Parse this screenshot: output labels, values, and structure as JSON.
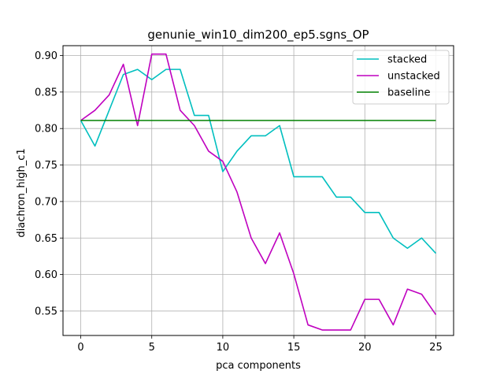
{
  "chart_data": {
    "type": "line",
    "title": "genunie_win10_dim200_ep5.sgns_OP",
    "xlabel": "pca components",
    "ylabel": "diachron_high_c1",
    "xlim": [
      -1.25,
      26.25
    ],
    "ylim": [
      0.5165,
      0.9135
    ],
    "xticks": [
      0,
      5,
      10,
      15,
      20,
      25
    ],
    "xtick_labels": [
      "0",
      "5",
      "10",
      "15",
      "20",
      "25"
    ],
    "yticks": [
      0.55,
      0.6,
      0.65,
      0.7,
      0.75,
      0.8,
      0.85,
      0.9
    ],
    "ytick_labels": [
      "0.55",
      "0.60",
      "0.65",
      "0.70",
      "0.75",
      "0.80",
      "0.85",
      "0.90"
    ],
    "grid": true,
    "legend_position": "top-right",
    "x": [
      0,
      1,
      2,
      3,
      4,
      5,
      6,
      7,
      8,
      9,
      10,
      11,
      12,
      13,
      14,
      15,
      16,
      17,
      18,
      19,
      20,
      21,
      22,
      23,
      24,
      25
    ],
    "series": [
      {
        "name": "stacked",
        "color": "#00bfbf",
        "values": [
          0.811,
          0.776,
          0.825,
          0.874,
          0.881,
          0.867,
          0.881,
          0.881,
          0.818,
          0.818,
          0.741,
          0.769,
          0.79,
          0.79,
          0.804,
          0.734,
          0.734,
          0.734,
          0.706,
          0.706,
          0.685,
          0.685,
          0.65,
          0.636,
          0.65,
          0.629
        ]
      },
      {
        "name": "unstacked",
        "color": "#bf00bf",
        "values": [
          0.811,
          0.825,
          0.846,
          0.888,
          0.804,
          0.902,
          0.902,
          0.825,
          0.804,
          0.769,
          0.755,
          0.713,
          0.65,
          0.615,
          0.657,
          0.601,
          0.531,
          0.524,
          0.524,
          0.524,
          0.566,
          0.566,
          0.531,
          0.58,
          0.573,
          0.545
        ]
      },
      {
        "name": "baseline",
        "color": "#008000",
        "values": [
          0.811,
          0.811,
          0.811,
          0.811,
          0.811,
          0.811,
          0.811,
          0.811,
          0.811,
          0.811,
          0.811,
          0.811,
          0.811,
          0.811,
          0.811,
          0.811,
          0.811,
          0.811,
          0.811,
          0.811,
          0.811,
          0.811,
          0.811,
          0.811,
          0.811,
          0.811
        ]
      }
    ]
  }
}
